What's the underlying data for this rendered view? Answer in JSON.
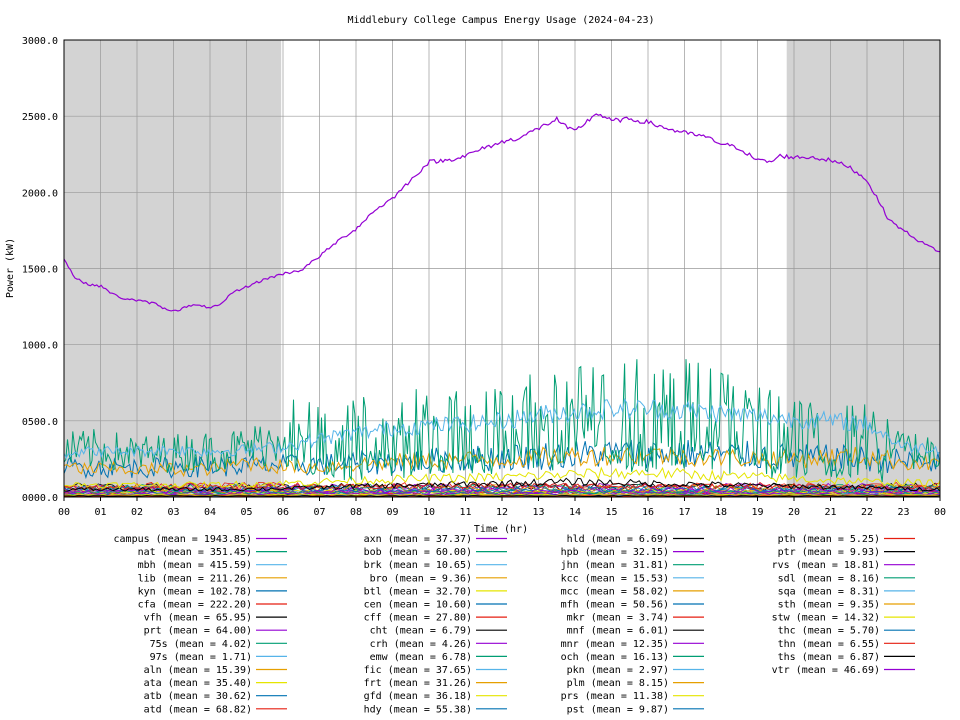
{
  "chart_data": {
    "type": "line",
    "title": "Middlebury College Campus Energy Usage (2024-04-23)",
    "xlabel": "Time (hr)",
    "ylabel": "Power (kW)",
    "xlim": [
      0,
      24
    ],
    "ylim": [
      0,
      3000
    ],
    "x_tick_labels": [
      "00",
      "01",
      "02",
      "03",
      "04",
      "05",
      "06",
      "07",
      "08",
      "09",
      "10",
      "11",
      "12",
      "13",
      "14",
      "15",
      "16",
      "17",
      "18",
      "19",
      "20",
      "21",
      "22",
      "23",
      "00"
    ],
    "y_tick_labels": [
      "0000.0",
      "0500.0",
      "1000.0",
      "1500.0",
      "2000.0",
      "2500.0",
      "3000.0"
    ],
    "y_ticks": [
      0,
      500,
      1000,
      1500,
      2000,
      2500,
      3000
    ],
    "grid": true,
    "night_shading": [
      [
        0,
        5.95
      ],
      [
        19.8,
        24
      ]
    ],
    "series": [
      {
        "name": "campus (mean = 1943.85)",
        "color": "#9400d3",
        "mean": 1943.85,
        "points": [
          [
            0,
            1560
          ],
          [
            0.3,
            1440
          ],
          [
            0.6,
            1400
          ],
          [
            1,
            1385
          ],
          [
            1.5,
            1310
          ],
          [
            2,
            1290
          ],
          [
            2.5,
            1270
          ],
          [
            2.8,
            1230
          ],
          [
            3.1,
            1225
          ],
          [
            3.5,
            1260
          ],
          [
            4,
            1245
          ],
          [
            4.3,
            1260
          ],
          [
            4.6,
            1340
          ],
          [
            5,
            1380
          ],
          [
            5.5,
            1430
          ],
          [
            6,
            1465
          ],
          [
            6.5,
            1490
          ],
          [
            7,
            1580
          ],
          [
            7.5,
            1680
          ],
          [
            8,
            1760
          ],
          [
            8.5,
            1880
          ],
          [
            9,
            1960
          ],
          [
            9.5,
            2080
          ],
          [
            10,
            2200
          ],
          [
            10.5,
            2210
          ],
          [
            11,
            2240
          ],
          [
            11.5,
            2290
          ],
          [
            12,
            2330
          ],
          [
            12.5,
            2360
          ],
          [
            13,
            2420
          ],
          [
            13.5,
            2480
          ],
          [
            13.8,
            2420
          ],
          [
            14,
            2400
          ],
          [
            14.3,
            2460
          ],
          [
            14.6,
            2520
          ],
          [
            15,
            2470
          ],
          [
            15.5,
            2480
          ],
          [
            16,
            2460
          ],
          [
            16.5,
            2420
          ],
          [
            17,
            2390
          ],
          [
            17.5,
            2370
          ],
          [
            18,
            2320
          ],
          [
            18.5,
            2290
          ],
          [
            19,
            2210
          ],
          [
            19.4,
            2200
          ],
          [
            19.6,
            2240
          ],
          [
            20,
            2230
          ],
          [
            20.5,
            2230
          ],
          [
            21,
            2210
          ],
          [
            21.5,
            2170
          ],
          [
            22,
            2080
          ],
          [
            22.3,
            1950
          ],
          [
            22.6,
            1820
          ],
          [
            23,
            1750
          ],
          [
            23.5,
            1670
          ],
          [
            24,
            1610
          ]
        ]
      },
      {
        "name": "nat (mean = 351.45)",
        "color": "#009e73",
        "mean": 351.45,
        "points": [
          [
            0,
            300
          ],
          [
            1,
            310
          ],
          [
            2,
            280
          ],
          [
            3,
            290
          ],
          [
            4,
            300
          ],
          [
            5,
            320
          ],
          [
            5.8,
            380
          ],
          [
            6,
            480
          ],
          [
            7,
            420
          ],
          [
            8,
            450
          ],
          [
            9,
            470
          ],
          [
            10,
            500
          ],
          [
            11,
            520
          ],
          [
            12,
            560
          ],
          [
            13,
            620
          ],
          [
            13.5,
            700
          ],
          [
            14,
            600
          ],
          [
            15,
            620
          ],
          [
            16,
            650
          ],
          [
            17,
            640
          ],
          [
            18,
            580
          ],
          [
            19,
            500
          ],
          [
            20,
            480
          ],
          [
            21,
            460
          ],
          [
            22,
            420
          ],
          [
            23,
            310
          ],
          [
            24,
            300
          ]
        ]
      },
      {
        "name": "mbh (mean = 415.59)",
        "color": "#56b4e9",
        "mean": 415.59,
        "points": [
          [
            0,
            290
          ],
          [
            1,
            300
          ],
          [
            2,
            300
          ],
          [
            3,
            310
          ],
          [
            4,
            300
          ],
          [
            5,
            310
          ],
          [
            6,
            330
          ],
          [
            7,
            380
          ],
          [
            8,
            420
          ],
          [
            9,
            450
          ],
          [
            10,
            470
          ],
          [
            11,
            480
          ],
          [
            12,
            500
          ],
          [
            13,
            540
          ],
          [
            14,
            560
          ],
          [
            15,
            580
          ],
          [
            16,
            580
          ],
          [
            17,
            570
          ],
          [
            18,
            550
          ],
          [
            19,
            530
          ],
          [
            20,
            510
          ],
          [
            21,
            500
          ],
          [
            22,
            480
          ],
          [
            23,
            330
          ],
          [
            24,
            320
          ]
        ]
      },
      {
        "name": "lib (mean = 211.26)",
        "color": "#e69f00",
        "mean": 211.26,
        "points": [
          [
            0,
            190
          ],
          [
            2,
            180
          ],
          [
            4,
            185
          ],
          [
            4.5,
            200
          ],
          [
            5,
            230
          ],
          [
            6,
            200
          ],
          [
            7,
            200
          ],
          [
            8,
            215
          ],
          [
            9,
            230
          ],
          [
            10,
            240
          ],
          [
            12,
            250
          ],
          [
            14,
            270
          ],
          [
            16,
            280
          ],
          [
            18,
            260
          ],
          [
            20,
            250
          ],
          [
            22,
            270
          ],
          [
            23,
            230
          ],
          [
            24,
            220
          ]
        ]
      },
      {
        "name": "cfa (mean = 222.20)",
        "color": "#0072b2",
        "mean": 222.2,
        "points": [
          [
            0,
            200
          ],
          [
            2,
            190
          ],
          [
            4,
            200
          ],
          [
            6,
            210
          ],
          [
            8,
            220
          ],
          [
            10,
            240
          ],
          [
            12,
            260
          ],
          [
            14,
            280
          ],
          [
            16,
            290
          ],
          [
            18,
            280
          ],
          [
            20,
            260
          ],
          [
            22,
            250
          ],
          [
            24,
            220
          ]
        ]
      },
      {
        "name": "kyn (mean = 102.78)",
        "color": "#e5e500",
        "mean": 102.78,
        "points": [
          [
            0,
            80
          ],
          [
            4,
            80
          ],
          [
            6,
            90
          ],
          [
            8,
            110
          ],
          [
            10,
            120
          ],
          [
            12,
            130
          ],
          [
            14,
            150
          ],
          [
            16,
            160
          ],
          [
            18,
            140
          ],
          [
            20,
            120
          ],
          [
            22,
            100
          ],
          [
            24,
            90
          ]
        ]
      },
      {
        "name": "prt (mean = 64.00)",
        "color": "#000000",
        "mean": 64.0,
        "points": [
          [
            0,
            50
          ],
          [
            4,
            50
          ],
          [
            6,
            55
          ],
          [
            8,
            70
          ],
          [
            10,
            80
          ],
          [
            12,
            90
          ],
          [
            14,
            100
          ],
          [
            16,
            90
          ],
          [
            18,
            80
          ],
          [
            20,
            70
          ],
          [
            22,
            60
          ],
          [
            24,
            50
          ]
        ]
      },
      {
        "name": "atd (mean = 68.82)",
        "color": "#d62728",
        "mean": 68.82,
        "points": [
          [
            0,
            60
          ],
          [
            6,
            65
          ],
          [
            12,
            75
          ],
          [
            18,
            70
          ],
          [
            24,
            60
          ]
        ]
      }
    ],
    "legend": [
      [
        "campus (mean = 1943.85)",
        "#9400d3"
      ],
      [
        "nat (mean = 351.45)",
        "#009e73"
      ],
      [
        "mbh (mean = 415.59)",
        "#56b4e9"
      ],
      [
        "lib (mean = 211.26)",
        "#e69f00"
      ],
      [
        "kyn (mean = 102.78)",
        "#0072b2"
      ],
      [
        "cfa (mean = 222.20)",
        "#e51e10"
      ],
      [
        "vfh (mean = 65.95)",
        "#000000"
      ],
      [
        "prt (mean = 64.00)",
        "#9400d3"
      ],
      [
        "75s (mean = 4.02)",
        "#009e73"
      ],
      [
        "97s (mean = 1.71)",
        "#56b4e9"
      ],
      [
        "aln (mean = 15.39)",
        "#e69f00"
      ],
      [
        "ata (mean = 35.40)",
        "#e5e500"
      ],
      [
        "atb (mean = 30.62)",
        "#0072b2"
      ],
      [
        "atd (mean = 68.82)",
        "#e51e10"
      ],
      [
        "axn (mean = 37.37)",
        "#9400d3"
      ],
      [
        "bob (mean = 60.00)",
        "#009e73"
      ],
      [
        "brk (mean = 10.65)",
        "#56b4e9"
      ],
      [
        "bro (mean = 9.36)",
        "#e69f00"
      ],
      [
        "btl (mean = 32.70)",
        "#e5e500"
      ],
      [
        "cen (mean = 10.60)",
        "#0072b2"
      ],
      [
        "cff (mean = 27.80)",
        "#e51e10"
      ],
      [
        "cht (mean = 6.79)",
        "#000000"
      ],
      [
        "crh (mean = 4.26)",
        "#9400d3"
      ],
      [
        "emw (mean = 6.78)",
        "#009e73"
      ],
      [
        "fic (mean = 37.65)",
        "#56b4e9"
      ],
      [
        "frt (mean = 31.26)",
        "#e69f00"
      ],
      [
        "gfd (mean = 36.18)",
        "#e5e500"
      ],
      [
        "hdy (mean = 55.38)",
        "#0072b2"
      ],
      [
        "hld (mean = 6.69)",
        "#000000"
      ],
      [
        "hpb (mean = 32.15)",
        "#9400d3"
      ],
      [
        "jhn (mean = 31.81)",
        "#009e73"
      ],
      [
        "kcc (mean = 15.53)",
        "#56b4e9"
      ],
      [
        "mcc (mean = 58.02)",
        "#e69f00"
      ],
      [
        "mfh (mean = 50.56)",
        "#0072b2"
      ],
      [
        "mkr (mean = 3.74)",
        "#e51e10"
      ],
      [
        "mnf (mean = 6.01)",
        "#000000"
      ],
      [
        "mnr (mean = 12.35)",
        "#9400d3"
      ],
      [
        "och (mean = 16.13)",
        "#009e73"
      ],
      [
        "pkn (mean = 2.97)",
        "#56b4e9"
      ],
      [
        "plm (mean = 8.15)",
        "#e69f00"
      ],
      [
        "prs (mean = 11.38)",
        "#e5e500"
      ],
      [
        "pst (mean = 9.87)",
        "#0072b2"
      ],
      [
        "pth (mean = 5.25)",
        "#e51e10"
      ],
      [
        "ptr (mean = 9.93)",
        "#000000"
      ],
      [
        "rvs (mean = 18.81)",
        "#9400d3"
      ],
      [
        "sdl (mean = 8.16)",
        "#009e73"
      ],
      [
        "sqa (mean = 8.31)",
        "#56b4e9"
      ],
      [
        "sth (mean = 9.35)",
        "#e69f00"
      ],
      [
        "stw (mean = 14.32)",
        "#e5e500"
      ],
      [
        "thc (mean = 5.70)",
        "#0072b2"
      ],
      [
        "thn (mean = 6.55)",
        "#e51e10"
      ],
      [
        "ths (mean = 6.87)",
        "#000000"
      ],
      [
        "vtr (mean = 46.69)",
        "#9400d3"
      ]
    ]
  }
}
